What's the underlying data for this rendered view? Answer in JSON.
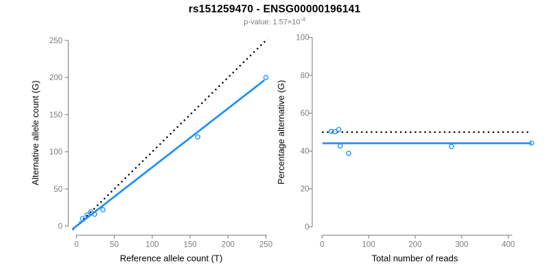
{
  "header": {
    "title": "rs151259470 - ENSG00000196141",
    "subtitle_prefix": "p-value: 1.57×10",
    "subtitle_exponent": "-4"
  },
  "colors": {
    "accent_blue": "#1E90FF",
    "axis_gray": "#888888",
    "tick_label_gray": "#7b7b7b",
    "subtitle_gray": "#7a7a7a",
    "text_black": "#000000",
    "identity_black": "#000000"
  },
  "chart_data": [
    {
      "type": "scatter",
      "panel": "left",
      "xlabel": "Reference allele count (T)",
      "ylabel": "Alternative allele count (G)",
      "xlim": [
        0,
        250
      ],
      "ylim": [
        0,
        250
      ],
      "xticks": [
        0,
        50,
        100,
        150,
        200,
        250
      ],
      "yticks": [
        0,
        50,
        100,
        150,
        200,
        250
      ],
      "grid": false,
      "legend": "none",
      "points": [
        [
          8,
          10
        ],
        [
          14,
          15
        ],
        [
          19,
          19
        ],
        [
          24,
          16
        ],
        [
          35,
          22
        ],
        [
          160,
          120
        ],
        [
          250,
          200
        ]
      ],
      "lines": [
        {
          "name": "identity-line",
          "style": "dotted",
          "color": "#000000",
          "from": [
            -5,
            -5
          ],
          "to": [
            252,
            252
          ]
        },
        {
          "name": "fit-line",
          "style": "solid",
          "color": "#1E90FF",
          "from": [
            -5,
            -3.96
          ],
          "to": [
            248,
            196.4
          ]
        }
      ]
    },
    {
      "type": "scatter",
      "panel": "right",
      "xlabel": "Total number of reads",
      "ylabel": "Percentage alternative (G)",
      "xlim": [
        0,
        450
      ],
      "ylim": [
        0,
        100
      ],
      "xticks": [
        0,
        100,
        200,
        300,
        400
      ],
      "yticks": [
        0,
        20,
        40,
        60,
        80,
        100
      ],
      "grid": false,
      "legend": "none",
      "points": [
        [
          20,
          50.4
        ],
        [
          28,
          50.2
        ],
        [
          36,
          51.4
        ],
        [
          39,
          42.7
        ],
        [
          57,
          38.8
        ],
        [
          278,
          42.4
        ],
        [
          450,
          44.2
        ]
      ],
      "lines": [
        {
          "name": "reference-50pct-line",
          "style": "dotted",
          "color": "#000000",
          "from": [
            0,
            50
          ],
          "to": [
            447,
            50
          ]
        },
        {
          "name": "fit-line",
          "style": "solid",
          "color": "#1E90FF",
          "from": [
            1,
            44.1
          ],
          "to": [
            450,
            44.1
          ]
        }
      ]
    }
  ]
}
